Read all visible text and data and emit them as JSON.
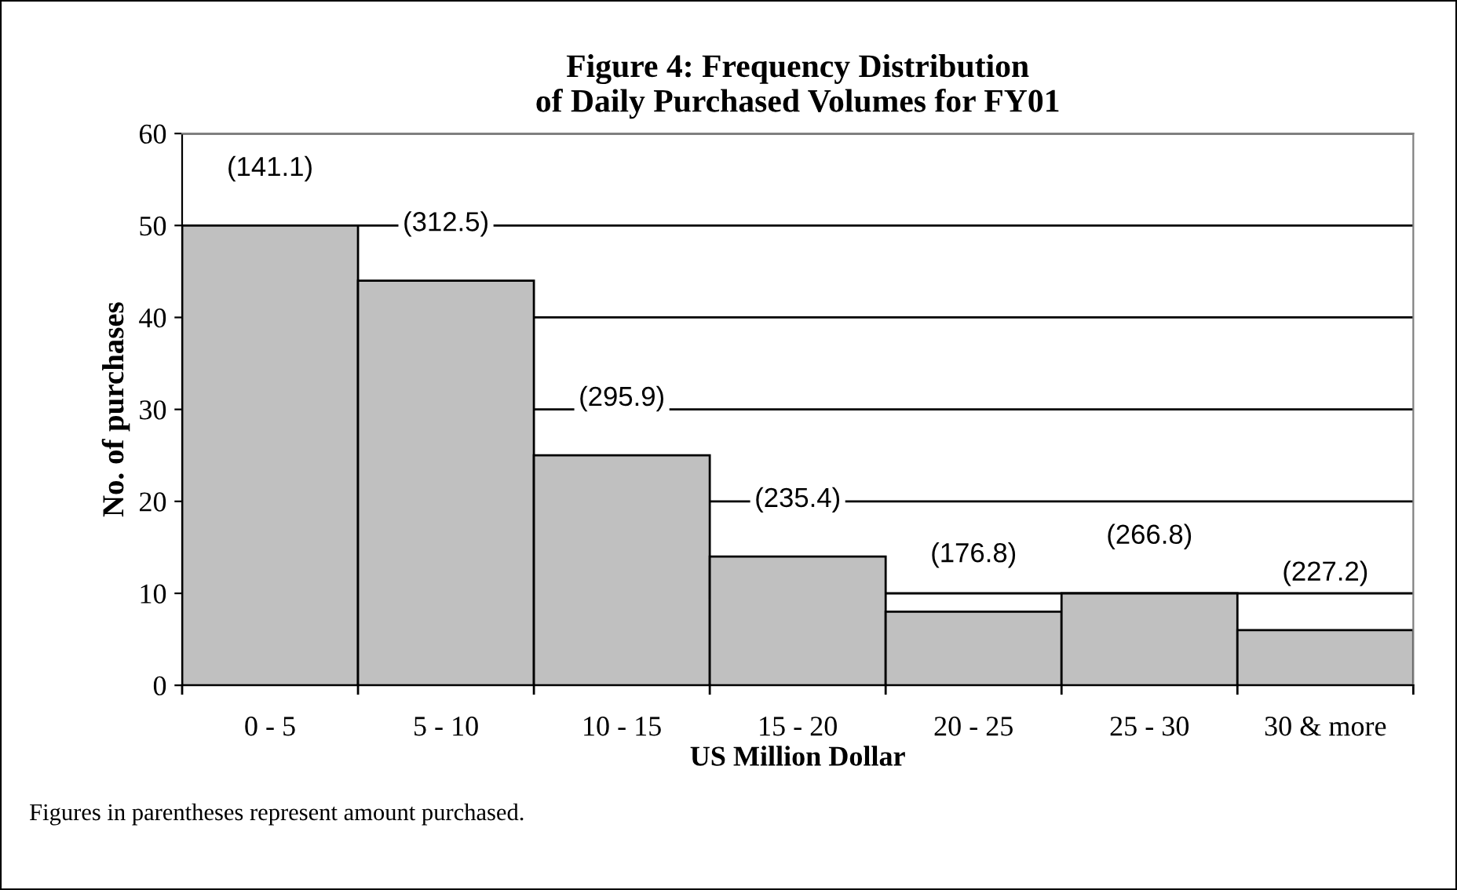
{
  "chart_data": {
    "type": "bar",
    "title": "Figure 4: Frequency Distribution\nof Daily Purchased Volumes for FY01",
    "xlabel": "US Million Dollar",
    "ylabel": "No. of purchases",
    "categories": [
      "0 - 5",
      "5 - 10",
      "10 - 15",
      "15 - 20",
      "20 - 25",
      "25 - 30",
      "30 & more"
    ],
    "values": [
      50,
      44,
      25,
      14,
      8,
      10,
      6
    ],
    "color": "#c0c0c0",
    "ylim": [
      0,
      60
    ],
    "yticks": [
      0,
      10,
      20,
      30,
      40,
      50,
      60
    ],
    "grid": "y",
    "annotations": [
      "(141.1)",
      "(312.5)",
      "(295.9)",
      "(235.4)",
      "(176.8)",
      "(266.8)",
      "(227.2)",
      "Figures in parentheses represent amount purchased."
    ]
  }
}
